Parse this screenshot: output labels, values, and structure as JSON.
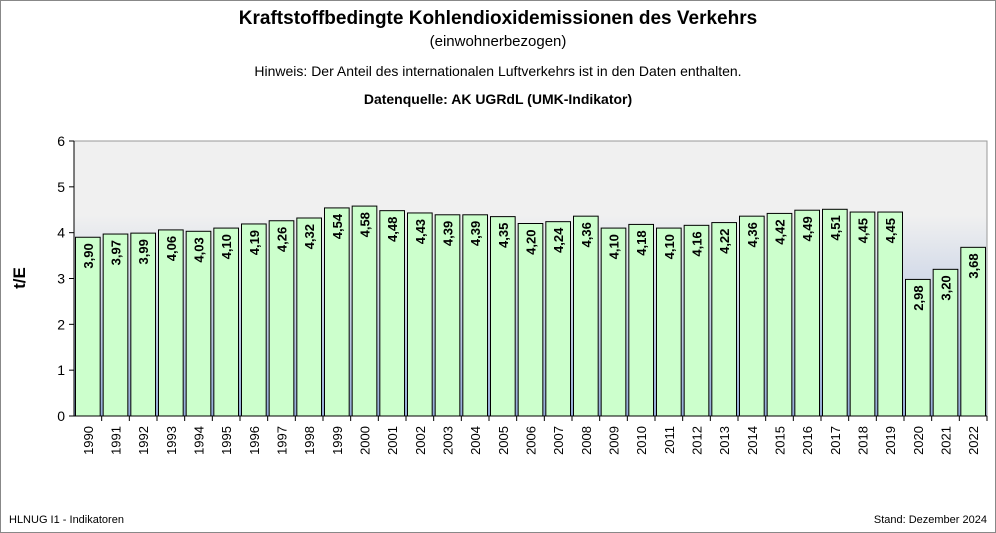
{
  "chart_data": {
    "type": "bar",
    "title": "Kraftstoffbedingte Kohlendioxidemissionen des Verkehrs",
    "subtitle": "(einwohnerbezogen)",
    "note": "Hinweis: Der Anteil des internationalen Luftverkehrs ist in den Daten enthalten.",
    "source": "Datenquelle: AK UGRdL (UMK-Indikator)",
    "ylabel": "t/E",
    "xlabel": "",
    "ylim": [
      0,
      6
    ],
    "yticks": [
      "0",
      "1",
      "2",
      "3",
      "4",
      "5",
      "6"
    ],
    "grid": false,
    "categories": [
      "1990",
      "1991",
      "1992",
      "1993",
      "1994",
      "1995",
      "1996",
      "1997",
      "1998",
      "1999",
      "2000",
      "2001",
      "2002",
      "2003",
      "2004",
      "2005",
      "2006",
      "2007",
      "2008",
      "2009",
      "2010",
      "2011",
      "2012",
      "2013",
      "2014",
      "2015",
      "2016",
      "2017",
      "2018",
      "2019",
      "2020",
      "2021",
      "2022"
    ],
    "values": [
      3.9,
      3.97,
      3.99,
      4.06,
      4.03,
      4.1,
      4.19,
      4.26,
      4.32,
      4.54,
      4.58,
      4.48,
      4.43,
      4.39,
      4.39,
      4.35,
      4.2,
      4.24,
      4.36,
      4.1,
      4.18,
      4.1,
      4.16,
      4.22,
      4.36,
      4.42,
      4.49,
      4.51,
      4.45,
      4.45,
      2.98,
      3.2,
      3.68
    ],
    "data_labels": [
      "3,90",
      "3,97",
      "3,99",
      "4,06",
      "4,03",
      "4,10",
      "4,19",
      "4,26",
      "4,32",
      "4,54",
      "4,58",
      "4,48",
      "4,43",
      "4,39",
      "4,39",
      "4,35",
      "4,20",
      "4,24",
      "4,36",
      "4,10",
      "4,18",
      "4,10",
      "4,16",
      "4,22",
      "4,36",
      "4,42",
      "4,49",
      "4,51",
      "4,45",
      "4,45",
      "2,98",
      "3,20",
      "3,68"
    ],
    "colors": {
      "bar_fill": "#ccffcc",
      "bar_stroke": "#000000",
      "plot_bg_top": "#f0f0f0",
      "plot_bg_bottom": "#94acd8"
    }
  },
  "footer": {
    "left": "HLNUG I1 - Indikatoren",
    "right": "Stand: Dezember 2024"
  }
}
